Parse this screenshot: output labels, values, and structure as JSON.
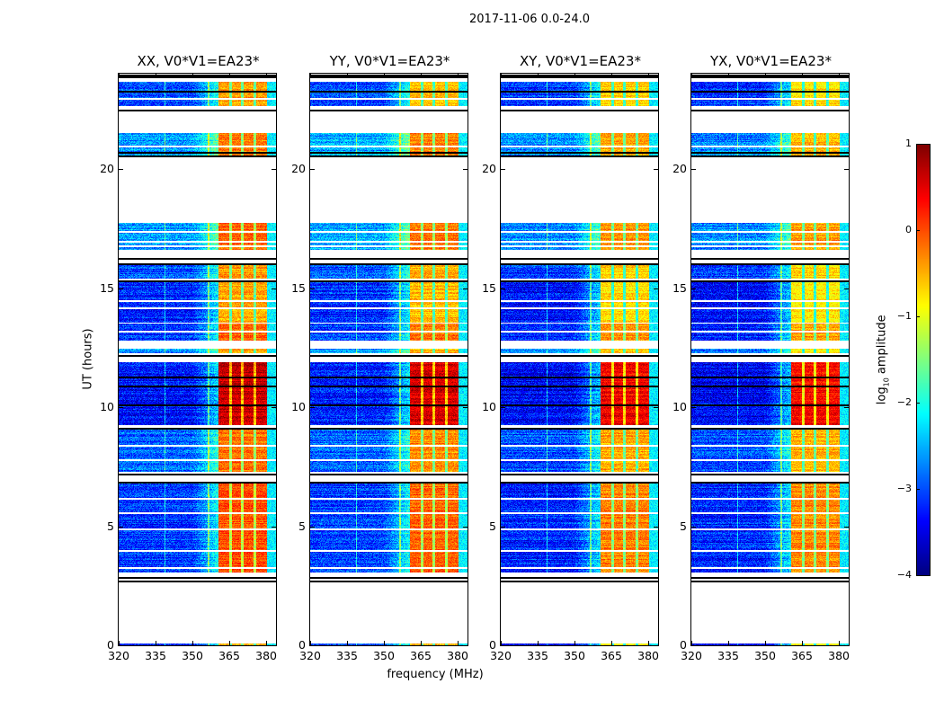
{
  "suptitle": "2017-11-06 0.0-24.0",
  "chart_data": {
    "type": "heatmap",
    "title": "2017-11-06 0.0-24.0",
    "xlabel": "frequency (MHz)",
    "ylabel": "UT (hours)",
    "xlim": [
      320,
      384
    ],
    "ylim": [
      0,
      24
    ],
    "xticks": [
      "320",
      "335",
      "350",
      "365",
      "380"
    ],
    "yticks": [
      "0",
      "5",
      "10",
      "15",
      "20"
    ],
    "colorbar": {
      "label": "log",
      "label_sub": "10",
      "label_rest": " amplitude",
      "clim": [
        -4,
        1
      ],
      "ticks": [
        "1",
        "0",
        "−1",
        "−2",
        "−3",
        "−4"
      ],
      "colormap": "jet"
    },
    "panels": [
      {
        "title": "XX, V0*V1=EA23*",
        "band_offset": 0.1,
        "bg_offset": 0.0
      },
      {
        "title": "YY, V0*V1=EA23*",
        "band_offset": 0.0,
        "bg_offset": 0.05
      },
      {
        "title": "XY, V0*V1=EA23*",
        "band_offset": -0.15,
        "bg_offset": -0.1
      },
      {
        "title": "YX, V0*V1=EA23*",
        "band_offset": -0.2,
        "bg_offset": -0.1
      }
    ],
    "segments": [
      {
        "t0": 0.0,
        "t1": 0.06,
        "band": -0.6,
        "bg": -3.2
      },
      {
        "t0": 3.05,
        "t1": 6.8,
        "band": -0.1,
        "bg": -3.1
      },
      {
        "t0": 7.3,
        "t1": 9.05,
        "band": -0.3,
        "bg": -2.9
      },
      {
        "t0": 9.25,
        "t1": 11.9,
        "band": 0.55,
        "bg": -3.3
      },
      {
        "t0": 12.25,
        "t1": 12.45,
        "band": -0.5,
        "bg": -2.6
      },
      {
        "t0": 12.8,
        "t1": 13.5,
        "band": -0.2,
        "bg": -3.1
      },
      {
        "t0": 13.55,
        "t1": 15.3,
        "band": -0.55,
        "bg": -3.2
      },
      {
        "t0": 15.4,
        "t1": 16.0,
        "band": -0.5,
        "bg": -3.0
      },
      {
        "t0": 16.6,
        "t1": 17.75,
        "band": -0.2,
        "bg": -2.6
      },
      {
        "t0": 20.55,
        "t1": 21.5,
        "band": -0.3,
        "bg": -2.6
      },
      {
        "t0": 22.65,
        "t1": 23.65,
        "band": -0.5,
        "bg": -3.0
      }
    ],
    "flagged_rows_black": [
      2.72,
      2.88,
      6.85,
      7.2,
      9.12,
      10.1,
      10.9,
      11.3,
      12.2,
      15.32,
      16.05,
      16.25,
      20.55,
      20.7,
      22.5,
      23.3,
      23.9,
      23.95
    ],
    "flagged_rows_white": [
      3.3,
      4.0,
      4.9,
      5.6,
      6.2,
      7.8,
      8.4,
      13.2,
      14.2,
      14.5,
      16.8,
      17.0,
      17.4,
      21.0,
      22.97
    ],
    "rfi_band_mhz": [
      360.5,
      380.5
    ],
    "band_dips_mhz": [
      365.5,
      370.2,
      375.3
    ],
    "spur_lines_mhz": [
      338.8,
      356.5
    ]
  }
}
